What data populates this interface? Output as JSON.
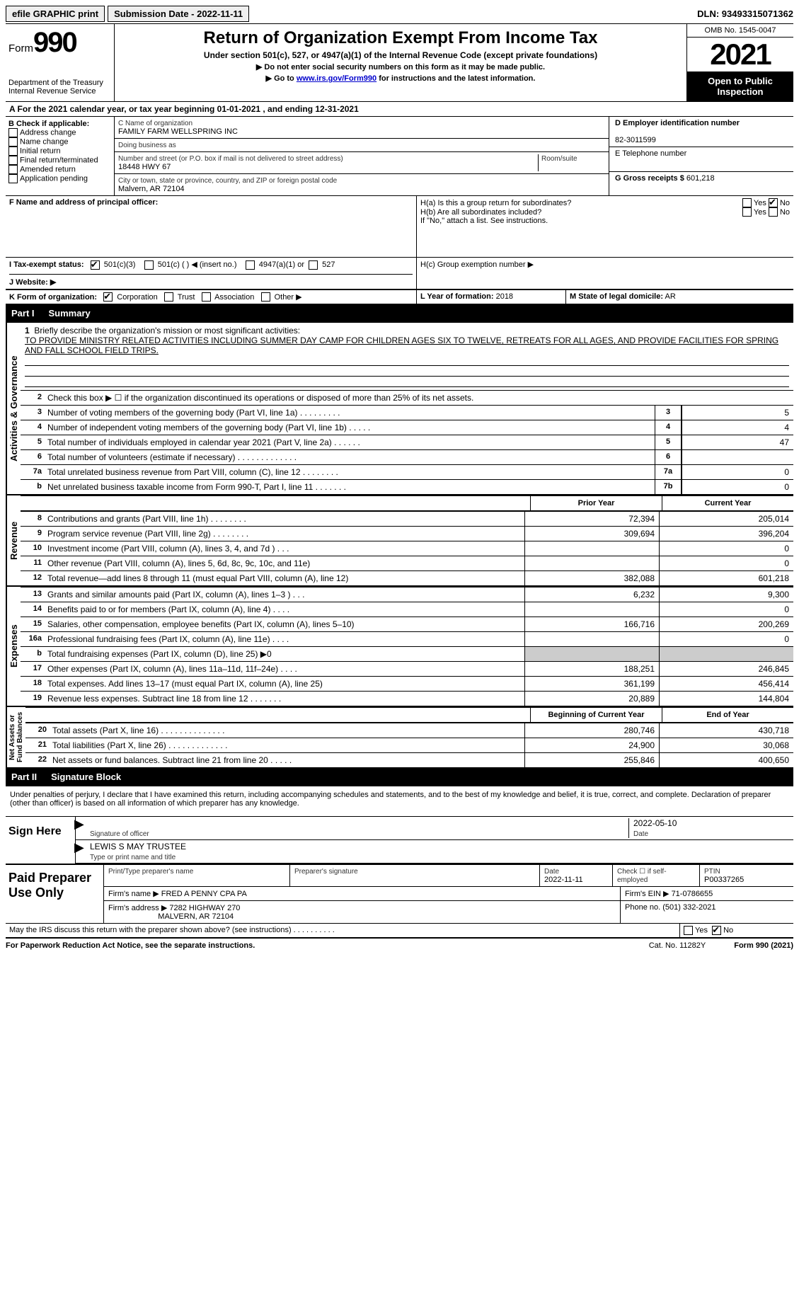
{
  "topbar": {
    "efile": "efile GRAPHIC print",
    "submission": "Submission Date - 2022-11-11",
    "dln": "DLN: 93493315071362"
  },
  "header": {
    "form_label": "Form",
    "form_num": "990",
    "dept": "Department of the Treasury Internal Revenue Service",
    "title": "Return of Organization Exempt From Income Tax",
    "subtitle": "Under section 501(c), 527, or 4947(a)(1) of the Internal Revenue Code (except private foundations)",
    "note1": "▶ Do not enter social security numbers on this form as it may be made public.",
    "note2_pre": "▶ Go to ",
    "note2_link": "www.irs.gov/Form990",
    "note2_post": " for instructions and the latest information.",
    "omb": "OMB No. 1545-0047",
    "year": "2021",
    "open": "Open to Public Inspection"
  },
  "section_a": "A For the 2021 calendar year, or tax year beginning 01-01-2021    , and ending 12-31-2021",
  "col_b": {
    "header": "B Check if applicable:",
    "items": [
      "Address change",
      "Name change",
      "Initial return",
      "Final return/terminated",
      "Amended return",
      "Application pending"
    ]
  },
  "col_c": {
    "name_lbl": "C Name of organization",
    "name": "FAMILY FARM WELLSPRING INC",
    "dba_lbl": "Doing business as",
    "addr_lbl": "Number and street (or P.O. box if mail is not delivered to street address)",
    "room_lbl": "Room/suite",
    "addr": "18448 HWY 67",
    "city_lbl": "City or town, state or province, country, and ZIP or foreign postal code",
    "city": "Malvern, AR  72104"
  },
  "col_d": {
    "ein_lbl": "D Employer identification number",
    "ein": "82-3011599",
    "tel_lbl": "E Telephone number",
    "gross_lbl": "G Gross receipts $",
    "gross": "601,218"
  },
  "row_f": {
    "label": "F  Name and address of principal officer:"
  },
  "row_h": {
    "ha": "H(a)  Is this a group return for subordinates?",
    "hb": "H(b)  Are all subordinates included?",
    "hb_note": "If \"No,\" attach a list. See instructions.",
    "hc": "H(c)  Group exemption number ▶",
    "yes": "Yes",
    "no": "No"
  },
  "row_i": {
    "label": "I  Tax-exempt status:",
    "opt1": "501(c)(3)",
    "opt2": "501(c) (  ) ◀ (insert no.)",
    "opt3": "4947(a)(1) or",
    "opt4": "527"
  },
  "row_j": "J  Website: ▶",
  "row_k": {
    "label": "K Form of organization:",
    "opts": [
      "Corporation",
      "Trust",
      "Association",
      "Other ▶"
    ]
  },
  "row_l": {
    "label": "L Year of formation:",
    "val": "2018"
  },
  "row_m": {
    "label": "M State of legal domicile:",
    "val": "AR"
  },
  "part1": {
    "label": "Part I",
    "title": "Summary"
  },
  "mission": {
    "num": "1",
    "label": "Briefly describe the organization's mission or most significant activities:",
    "text": "TO PROVIDE MINISTRY RELATED ACTIVITIES INCLUDING SUMMER DAY CAMP FOR CHILDREN AGES SIX TO TWELVE, RETREATS FOR ALL AGES, AND PROVIDE FACILITIES FOR SPRING AND FALL SCHOOL FIELD TRIPS."
  },
  "lines_gov": [
    {
      "n": "2",
      "t": "Check this box ▶ ☐ if the organization discontinued its operations or disposed of more than 25% of its net assets.",
      "box": "",
      "v": ""
    },
    {
      "n": "3",
      "t": "Number of voting members of the governing body (Part VI, line 1a)   .    .    .    .    .    .    .    .    .",
      "box": "3",
      "v": "5"
    },
    {
      "n": "4",
      "t": "Number of independent voting members of the governing body (Part VI, line 1b)   .    .    .    .    .",
      "box": "4",
      "v": "4"
    },
    {
      "n": "5",
      "t": "Total number of individuals employed in calendar year 2021 (Part V, line 2a)   .    .    .    .    .    .",
      "box": "5",
      "v": "47"
    },
    {
      "n": "6",
      "t": "Total number of volunteers (estimate if necessary)    .    .    .    .    .    .    .    .    .    .    .    .    .",
      "box": "6",
      "v": ""
    },
    {
      "n": "7a",
      "t": "Total unrelated business revenue from Part VIII, column (C), line 12   .    .    .    .    .    .    .    .",
      "box": "7a",
      "v": "0"
    },
    {
      "n": "b",
      "t": "Net unrelated business taxable income from Form 990-T, Part I, line 11    .    .    .    .    .    .    .",
      "box": "7b",
      "v": "0"
    }
  ],
  "hdr_prior": "Prior Year",
  "hdr_current": "Current Year",
  "lines_rev": [
    {
      "n": "8",
      "t": "Contributions and grants (Part VIII, line 1h)   .    .    .    .    .    .    .    .",
      "p": "72,394",
      "c": "205,014"
    },
    {
      "n": "9",
      "t": "Program service revenue (Part VIII, line 2g)   .    .    .    .    .    .    .    .",
      "p": "309,694",
      "c": "396,204"
    },
    {
      "n": "10",
      "t": "Investment income (Part VIII, column (A), lines 3, 4, and 7d )   .    .    .",
      "p": "",
      "c": "0"
    },
    {
      "n": "11",
      "t": "Other revenue (Part VIII, column (A), lines 5, 6d, 8c, 9c, 10c, and 11e)",
      "p": "",
      "c": "0"
    },
    {
      "n": "12",
      "t": "Total revenue—add lines 8 through 11 (must equal Part VIII, column (A), line 12)",
      "p": "382,088",
      "c": "601,218"
    }
  ],
  "lines_exp": [
    {
      "n": "13",
      "t": "Grants and similar amounts paid (Part IX, column (A), lines 1–3 )   .    .    .",
      "p": "6,232",
      "c": "9,300"
    },
    {
      "n": "14",
      "t": "Benefits paid to or for members (Part IX, column (A), line 4)   .    .    .    .",
      "p": "",
      "c": "0"
    },
    {
      "n": "15",
      "t": "Salaries, other compensation, employee benefits (Part IX, column (A), lines 5–10)",
      "p": "166,716",
      "c": "200,269"
    },
    {
      "n": "16a",
      "t": "Professional fundraising fees (Part IX, column (A), line 11e)   .    .    .    .",
      "p": "",
      "c": "0"
    },
    {
      "n": "b",
      "t": "Total fundraising expenses (Part IX, column (D), line 25) ▶0",
      "p": "shaded",
      "c": "shaded"
    },
    {
      "n": "17",
      "t": "Other expenses (Part IX, column (A), lines 11a–11d, 11f–24e)   .    .    .    .",
      "p": "188,251",
      "c": "246,845"
    },
    {
      "n": "18",
      "t": "Total expenses. Add lines 13–17 (must equal Part IX, column (A), line 25)",
      "p": "361,199",
      "c": "456,414"
    },
    {
      "n": "19",
      "t": "Revenue less expenses. Subtract line 18 from line 12   .    .    .    .    .    .    .",
      "p": "20,889",
      "c": "144,804"
    }
  ],
  "hdr_begin": "Beginning of Current Year",
  "hdr_end": "End of Year",
  "lines_net": [
    {
      "n": "20",
      "t": "Total assets (Part X, line 16)   .    .    .    .    .    .    .    .    .    .    .    .    .    .",
      "p": "280,746",
      "c": "430,718"
    },
    {
      "n": "21",
      "t": "Total liabilities (Part X, line 26)   .    .    .    .    .    .    .    .    .    .    .    .    .",
      "p": "24,900",
      "c": "30,068"
    },
    {
      "n": "22",
      "t": "Net assets or fund balances. Subtract line 21 from line 20   .    .    .    .    .",
      "p": "255,846",
      "c": "400,650"
    }
  ],
  "part2": {
    "label": "Part II",
    "title": "Signature Block"
  },
  "perjury": "Under penalties of perjury, I declare that I have examined this return, including accompanying schedules and statements, and to the best of my knowledge and belief, it is true, correct, and complete. Declaration of preparer (other than officer) is based on all information of which preparer has any knowledge.",
  "sign": {
    "here": "Sign Here",
    "sig_lbl": "Signature of officer",
    "date_lbl": "Date",
    "date": "2022-05-10",
    "name": "LEWIS S MAY TRUSTEE",
    "name_lbl": "Type or print name and title"
  },
  "prep": {
    "title": "Paid Preparer Use Only",
    "print_lbl": "Print/Type preparer's name",
    "sig_lbl": "Preparer's signature",
    "date_lbl": "Date",
    "date": "2022-11-11",
    "check_lbl": "Check ☐ if self-employed",
    "ptin_lbl": "PTIN",
    "ptin": "P00337265",
    "firm_name_lbl": "Firm's name    ▶",
    "firm_name": "FRED A PENNY CPA PA",
    "firm_ein_lbl": "Firm's EIN ▶",
    "firm_ein": "71-0786655",
    "firm_addr_lbl": "Firm's address ▶",
    "firm_addr1": "7282 HIGHWAY 270",
    "firm_addr2": "MALVERN, AR  72104",
    "phone_lbl": "Phone no.",
    "phone": "(501) 332-2021"
  },
  "discuss": "May the IRS discuss this return with the preparer shown above? (see instructions)    .    .    .    .    .    .    .    .    .    .",
  "footer": {
    "left": "For Paperwork Reduction Act Notice, see the separate instructions.",
    "mid": "Cat. No. 11282Y",
    "right": "Form 990 (2021)"
  }
}
